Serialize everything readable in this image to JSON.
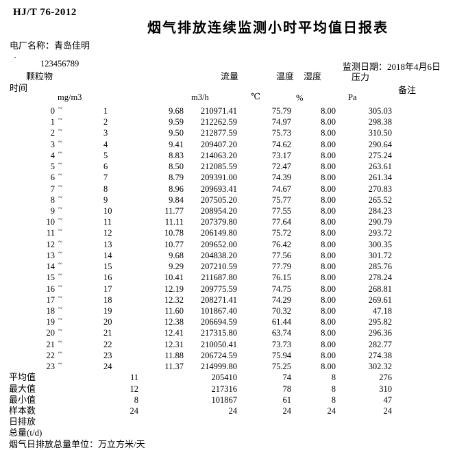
{
  "header": {
    "standard": "HJ/T 76-2012",
    "title": "烟气排放连续监测小时平均值日报表",
    "plant_label": "电厂名称：",
    "plant_name": "青岛佳明",
    "mark": "`",
    "serial": "123456789",
    "date": "监测日期：2018年4月6日"
  },
  "table": {
    "headers": {
      "time": "时间",
      "pm": "颗粒物",
      "flow": "流量",
      "temp": "温度",
      "humidity": "湿度",
      "pressure": "压力",
      "remark": "备注"
    },
    "units": {
      "pm": "mg/m3",
      "flow": "m3/h",
      "temp": "℃",
      "humidity": "%",
      "pressure": "Pa"
    },
    "tilde": "~",
    "rows": [
      {
        "from": "0",
        "to": "1",
        "pm": "9.68",
        "flow": "210971.41",
        "temp": "75.79",
        "humidity": "8.00",
        "pressure": "305.03"
      },
      {
        "from": "1",
        "to": "2",
        "pm": "9.59",
        "flow": "212262.59",
        "temp": "74.97",
        "humidity": "8.00",
        "pressure": "298.38"
      },
      {
        "from": "2",
        "to": "3",
        "pm": "9.50",
        "flow": "212877.59",
        "temp": "75.73",
        "humidity": "8.00",
        "pressure": "310.50"
      },
      {
        "from": "3",
        "to": "4",
        "pm": "9.41",
        "flow": "209407.20",
        "temp": "74.62",
        "humidity": "8.00",
        "pressure": "290.64"
      },
      {
        "from": "4",
        "to": "5",
        "pm": "8.83",
        "flow": "214063.20",
        "temp": "73.17",
        "humidity": "8.00",
        "pressure": "275.24"
      },
      {
        "from": "5",
        "to": "6",
        "pm": "8.50",
        "flow": "212085.59",
        "temp": "72.47",
        "humidity": "8.00",
        "pressure": "263.61"
      },
      {
        "from": "6",
        "to": "7",
        "pm": "8.79",
        "flow": "209391.00",
        "temp": "74.39",
        "humidity": "8.00",
        "pressure": "261.34"
      },
      {
        "from": "7",
        "to": "8",
        "pm": "8.96",
        "flow": "209693.41",
        "temp": "74.67",
        "humidity": "8.00",
        "pressure": "270.83"
      },
      {
        "from": "8",
        "to": "9",
        "pm": "9.84",
        "flow": "207505.20",
        "temp": "75.77",
        "humidity": "8.00",
        "pressure": "265.52"
      },
      {
        "from": "9",
        "to": "10",
        "pm": "11.77",
        "flow": "208954.20",
        "temp": "77.55",
        "humidity": "8.00",
        "pressure": "284.23"
      },
      {
        "from": "10",
        "to": "11",
        "pm": "11.11",
        "flow": "207379.80",
        "temp": "77.64",
        "humidity": "8.00",
        "pressure": "290.79"
      },
      {
        "from": "11",
        "to": "12",
        "pm": "10.78",
        "flow": "206149.80",
        "temp": "75.72",
        "humidity": "8.00",
        "pressure": "293.72"
      },
      {
        "from": "12",
        "to": "13",
        "pm": "10.77",
        "flow": "209652.00",
        "temp": "76.42",
        "humidity": "8.00",
        "pressure": "300.35"
      },
      {
        "from": "13",
        "to": "14",
        "pm": "9.68",
        "flow": "204838.20",
        "temp": "77.56",
        "humidity": "8.00",
        "pressure": "301.72"
      },
      {
        "from": "14",
        "to": "15",
        "pm": "9.29",
        "flow": "207210.59",
        "temp": "77.79",
        "humidity": "8.00",
        "pressure": "285.76"
      },
      {
        "from": "15",
        "to": "16",
        "pm": "10.41",
        "flow": "211687.80",
        "temp": "76.15",
        "humidity": "8.00",
        "pressure": "278.24"
      },
      {
        "from": "16",
        "to": "17",
        "pm": "12.19",
        "flow": "209775.59",
        "temp": "74.75",
        "humidity": "8.00",
        "pressure": "268.81"
      },
      {
        "from": "17",
        "to": "18",
        "pm": "12.32",
        "flow": "208271.41",
        "temp": "74.29",
        "humidity": "8.00",
        "pressure": "269.61"
      },
      {
        "from": "18",
        "to": "19",
        "pm": "11.60",
        "flow": "101867.40",
        "temp": "70.32",
        "humidity": "8.00",
        "pressure": "47.18"
      },
      {
        "from": "19",
        "to": "20",
        "pm": "12.38",
        "flow": "206694.59",
        "temp": "61.44",
        "humidity": "8.00",
        "pressure": "295.82"
      },
      {
        "from": "20",
        "to": "21",
        "pm": "12.41",
        "flow": "217315.80",
        "temp": "63.74",
        "humidity": "8.00",
        "pressure": "296.36"
      },
      {
        "from": "21",
        "to": "22",
        "pm": "12.31",
        "flow": "210050.41",
        "temp": "73.73",
        "humidity": "8.00",
        "pressure": "282.77"
      },
      {
        "from": "22",
        "to": "23",
        "pm": "11.88",
        "flow": "206724.59",
        "temp": "75.94",
        "humidity": "8.00",
        "pressure": "274.38"
      },
      {
        "from": "23",
        "to": "24",
        "pm": "11.37",
        "flow": "214999.80",
        "temp": "75.25",
        "humidity": "8.00",
        "pressure": "302.32"
      }
    ],
    "summary": [
      {
        "label": "平均值",
        "value": "11",
        "flow": "205410",
        "temp": "74",
        "humidity": "8",
        "pressure": "276"
      },
      {
        "label": "最大值",
        "value": "12",
        "flow": "217316",
        "temp": "78",
        "humidity": "8",
        "pressure": "310"
      },
      {
        "label": "最小值",
        "value": "8",
        "flow": "101867",
        "temp": "61",
        "humidity": "8",
        "pressure": "47"
      },
      {
        "label": "样本数",
        "value": "24",
        "flow": "24",
        "temp": "24",
        "humidity": "24",
        "pressure": "24"
      }
    ]
  },
  "footer": {
    "lines": [
      "日排放",
      "总量(t/d)",
      "烟气日排放总量单位：万立方米/天"
    ]
  }
}
